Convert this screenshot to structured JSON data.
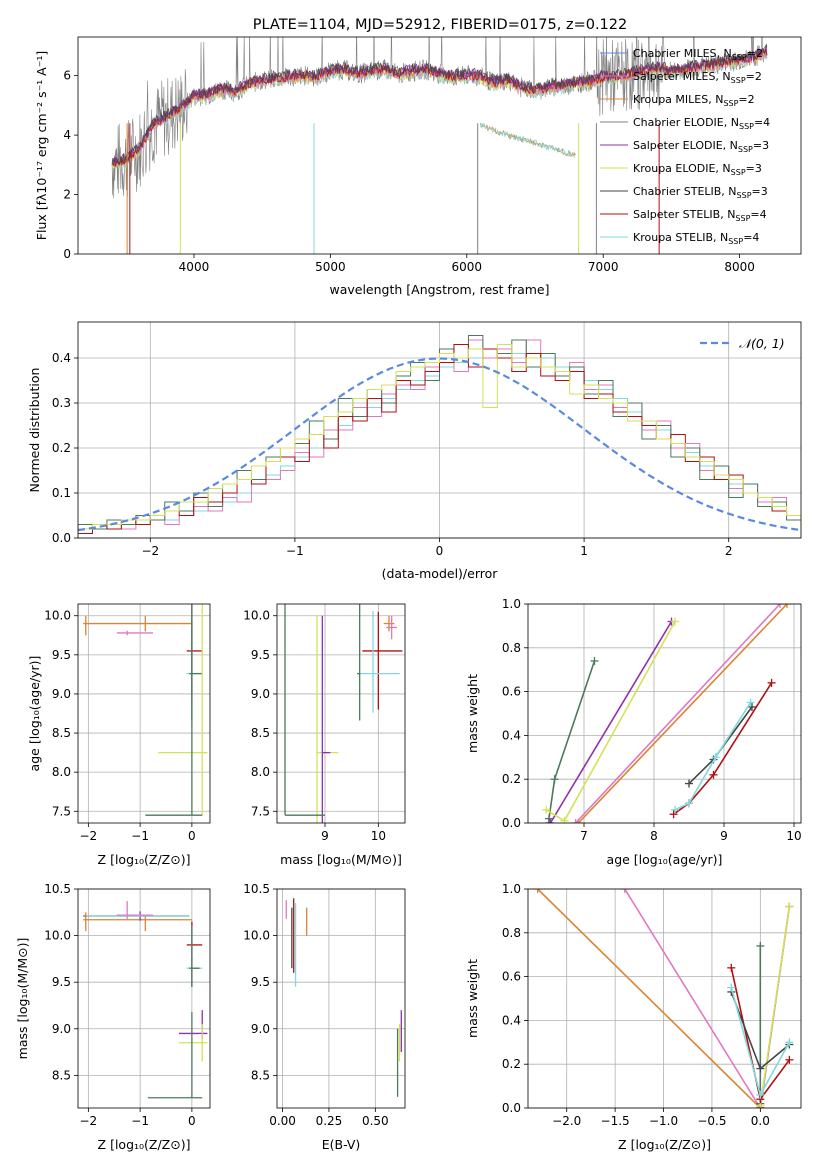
{
  "colors": {
    "gray": "#808080",
    "pink": "#e377c2",
    "orange": "#d98532",
    "olive": "#4c7a5c",
    "purple": "#9030a8",
    "yellow": "#d4e157",
    "dark": "#454545",
    "red": "#b01010",
    "cyan": "#80d8e0",
    "gauss": "#5a8ae0"
  },
  "chart_data": [
    {
      "type": "line",
      "title": "PLATE=1104, MJD=52912, FIBERID=0175, z=0.122",
      "xlabel": "wavelength [Angstrom, rest frame]",
      "ylabel": "Flux [fλ10⁻¹⁷ erg cm⁻² s⁻¹ A⁻¹]",
      "xlim": [
        3150,
        8450
      ],
      "ylim": [
        0,
        7.3
      ],
      "xticks": [
        4000,
        5000,
        6000,
        7000,
        8000
      ],
      "yticks": [
        0,
        2,
        4,
        6
      ],
      "legend": [
        {
          "text": "Chabrier MILES, N",
          "sub": "SSP",
          "tail": "=2",
          "color": "#5a8ae0"
        },
        {
          "text": "Salpeter MILES, N",
          "sub": "SSP",
          "tail": "=2",
          "color": "#e377c2"
        },
        {
          "text": "Kroupa MILES, N",
          "sub": "SSP",
          "tail": "=2",
          "color": "#d98532"
        },
        {
          "text": "Chabrier ELODIE, N",
          "sub": "SSP",
          "tail": "=4",
          "color": "#808080"
        },
        {
          "text": "Salpeter ELODIE, N",
          "sub": "SSP",
          "tail": "=3",
          "color": "#9030a8"
        },
        {
          "text": "Kroupa ELODIE, N",
          "sub": "SSP",
          "tail": "=3",
          "color": "#d4e157"
        },
        {
          "text": "Chabrier STELIB, N",
          "sub": "SSP",
          "tail": "=3",
          "color": "#454545"
        },
        {
          "text": "Salpeter STELIB, N",
          "sub": "SSP",
          "tail": "=4",
          "color": "#b01010"
        },
        {
          "text": "Kroupa STELIB, N",
          "sub": "SSP",
          "tail": "=4",
          "color": "#80d8e0"
        }
      ],
      "spectrum": {
        "x": [
          3400,
          3500,
          3600,
          3700,
          3800,
          3900,
          4000,
          4100,
          4200,
          4300,
          4400,
          4500,
          4600,
          4700,
          4800,
          4900,
          5000,
          5100,
          5200,
          5300,
          5400,
          5500,
          5600,
          5700,
          5800,
          5900,
          6000,
          6050,
          6100,
          6200,
          6300,
          6400,
          6500,
          6600,
          6700,
          6800,
          6900,
          7000,
          7100,
          7200,
          7300,
          7400,
          7500,
          7600,
          7700,
          7800,
          7900,
          8000,
          8100,
          8200
        ],
        "y": [
          3.05,
          3.15,
          3.55,
          4.35,
          4.6,
          4.9,
          5.3,
          5.35,
          5.55,
          5.45,
          5.7,
          5.85,
          5.9,
          5.95,
          6.0,
          5.95,
          6.15,
          6.2,
          6.05,
          6.15,
          6.2,
          6.05,
          6.15,
          6.2,
          6.05,
          5.95,
          6.0,
          6.0,
          5.95,
          5.75,
          5.85,
          5.6,
          5.5,
          5.6,
          5.65,
          5.75,
          5.8,
          5.95,
          5.95,
          6.05,
          6.15,
          6.25,
          6.15,
          6.2,
          6.3,
          6.35,
          6.45,
          6.5,
          6.6,
          6.8
        ]
      },
      "second_branch": {
        "x": [
          6100,
          6200,
          6300,
          6400,
          6500,
          6600,
          6700,
          6800
        ],
        "y": [
          4.35,
          4.15,
          4.0,
          3.85,
          3.75,
          3.6,
          3.45,
          3.3
        ]
      }
    },
    {
      "type": "bar",
      "xlabel": "(data-model)/error",
      "ylabel": "Normed distribution",
      "xlim": [
        -2.5,
        2.5
      ],
      "ylim": [
        0,
        0.48
      ],
      "xticks": [
        -2,
        -1,
        0,
        1,
        2
      ],
      "yticks": [
        0.0,
        0.1,
        0.2,
        0.3,
        0.4
      ],
      "legend": "𝒩(0, 1)",
      "bin_width": 0.1,
      "series": [
        {
          "color": "#80d8e0",
          "values": [
            0.01,
            0.02,
            0.02,
            0.03,
            0.03,
            0.04,
            0.04,
            0.05,
            0.06,
            0.07,
            0.08,
            0.1,
            0.12,
            0.14,
            0.16,
            0.18,
            0.2,
            0.22,
            0.25,
            0.27,
            0.29,
            0.31,
            0.33,
            0.35,
            0.36,
            0.38,
            0.39,
            0.4,
            0.4,
            0.41,
            0.41,
            0.4,
            0.4,
            0.38,
            0.37,
            0.35,
            0.33,
            0.31,
            0.28,
            0.26,
            0.24,
            0.21,
            0.19,
            0.16,
            0.14,
            0.12,
            0.1,
            0.08,
            0.06,
            0.04
          ]
        },
        {
          "color": "#e377c2",
          "values": [
            0.02,
            0.02,
            0.03,
            0.02,
            0.04,
            0.05,
            0.03,
            0.05,
            0.07,
            0.06,
            0.09,
            0.08,
            0.12,
            0.13,
            0.15,
            0.19,
            0.18,
            0.24,
            0.24,
            0.29,
            0.27,
            0.32,
            0.34,
            0.33,
            0.38,
            0.42,
            0.37,
            0.44,
            0.4,
            0.42,
            0.39,
            0.44,
            0.38,
            0.36,
            0.39,
            0.33,
            0.34,
            0.29,
            0.3,
            0.24,
            0.26,
            0.2,
            0.21,
            0.15,
            0.16,
            0.11,
            0.12,
            0.08,
            0.09,
            0.05
          ]
        },
        {
          "color": "#4c7a5c",
          "values": [
            0.03,
            0.02,
            0.04,
            0.03,
            0.05,
            0.04,
            0.08,
            0.06,
            0.1,
            0.07,
            0.12,
            0.15,
            0.13,
            0.18,
            0.2,
            0.21,
            0.26,
            0.22,
            0.31,
            0.27,
            0.33,
            0.3,
            0.36,
            0.39,
            0.35,
            0.42,
            0.4,
            0.45,
            0.42,
            0.41,
            0.44,
            0.38,
            0.41,
            0.36,
            0.38,
            0.32,
            0.35,
            0.27,
            0.3,
            0.22,
            0.25,
            0.18,
            0.2,
            0.13,
            0.16,
            0.09,
            0.12,
            0.07,
            0.08,
            0.04
          ]
        },
        {
          "color": "#b01010",
          "values": [
            0.01,
            0.03,
            0.02,
            0.04,
            0.03,
            0.05,
            0.06,
            0.05,
            0.09,
            0.08,
            0.1,
            0.13,
            0.12,
            0.17,
            0.18,
            0.17,
            0.23,
            0.2,
            0.27,
            0.26,
            0.31,
            0.28,
            0.35,
            0.34,
            0.37,
            0.39,
            0.43,
            0.38,
            0.42,
            0.4,
            0.37,
            0.41,
            0.36,
            0.35,
            0.37,
            0.31,
            0.32,
            0.28,
            0.27,
            0.25,
            0.22,
            0.23,
            0.17,
            0.18,
            0.13,
            0.14,
            0.1,
            0.09,
            0.06,
            0.05
          ]
        },
        {
          "color": "#d4e157",
          "values": [
            0.02,
            0.03,
            0.03,
            0.04,
            0.04,
            0.05,
            0.06,
            0.08,
            0.08,
            0.11,
            0.12,
            0.13,
            0.16,
            0.17,
            0.2,
            0.22,
            0.23,
            0.27,
            0.28,
            0.31,
            0.33,
            0.34,
            0.37,
            0.38,
            0.39,
            0.41,
            0.4,
            0.42,
            0.29,
            0.43,
            0.38,
            0.4,
            0.38,
            0.37,
            0.32,
            0.34,
            0.31,
            0.3,
            0.26,
            0.26,
            0.22,
            0.21,
            0.18,
            0.17,
            0.14,
            0.13,
            0.1,
            0.09,
            0.07,
            0.05
          ]
        }
      ],
      "gaussian": "N(0,1)"
    },
    {
      "type": "scatter",
      "xlabel": "Z [log₁₀(Z/Z⊙)]",
      "ylabel": "age  [log₁₀(age/yr)]",
      "xlim": [
        -2.2,
        0.35
      ],
      "ylim": [
        7.35,
        10.15
      ],
      "xticks": [
        -2,
        -1,
        0
      ],
      "yticks": [
        7.5,
        8.0,
        8.5,
        9.0,
        9.5,
        10.0
      ]
    },
    {
      "type": "scatter",
      "xlabel": "mass [log₁₀(M/M⊙)]",
      "xlim": [
        8.1,
        10.5
      ],
      "ylim": [
        7.35,
        10.15
      ],
      "xticks": [
        9,
        10
      ],
      "yticks": [
        7.5,
        8.0,
        8.5,
        9.0,
        9.5,
        10.0
      ]
    },
    {
      "type": "line",
      "xlabel": "age  [log₁₀(age/yr)]",
      "ylabel": "mass weight",
      "xlim": [
        6.2,
        10.1
      ],
      "ylim": [
        0,
        1
      ],
      "xticks": [
        7,
        8,
        9,
        10
      ],
      "yticks": [
        0.0,
        0.2,
        0.4,
        0.6,
        0.8,
        1.0
      ],
      "series": [
        {
          "color": "#4c7a5c",
          "x": [
            6.5,
            6.5,
            6.58,
            7.15
          ],
          "y": [
            0.0,
            0.02,
            0.2,
            0.74
          ]
        },
        {
          "color": "#9030a8",
          "x": [
            6.52,
            8.25
          ],
          "y": [
            0.0,
            0.92
          ]
        },
        {
          "color": "#d4e157",
          "x": [
            6.46,
            6.72,
            8.3
          ],
          "y": [
            0.06,
            0.01,
            0.92
          ]
        },
        {
          "color": "#d98532",
          "x": [
            6.92,
            9.9
          ],
          "y": [
            0.0,
            1.0
          ]
        },
        {
          "color": "#e377c2",
          "x": [
            6.88,
            9.8
          ],
          "y": [
            0.0,
            1.0
          ]
        },
        {
          "color": "#454545",
          "x": [
            8.5,
            8.85,
            9.4
          ],
          "y": [
            0.18,
            0.29,
            0.53
          ]
        },
        {
          "color": "#b01010",
          "x": [
            8.28,
            8.5,
            8.85,
            9.68
          ],
          "y": [
            0.04,
            0.09,
            0.22,
            0.64
          ]
        },
        {
          "color": "#80d8e0",
          "x": [
            8.3,
            8.5,
            8.88,
            9.38
          ],
          "y": [
            0.06,
            0.09,
            0.3,
            0.55
          ]
        }
      ]
    },
    {
      "type": "scatter",
      "xlabel": "Z [log₁₀(Z/Z⊙)]",
      "ylabel": "mass [log₁₀(M/M⊙)]",
      "xlim": [
        -2.2,
        0.35
      ],
      "ylim": [
        8.15,
        10.5
      ],
      "xticks": [
        -2,
        -1,
        0
      ],
      "yticks": [
        8.5,
        9.0,
        9.5,
        10.0,
        10.5
      ]
    },
    {
      "type": "scatter",
      "xlabel": "E(B-V)",
      "xlim": [
        -0.03,
        0.66
      ],
      "ylim": [
        8.15,
        10.5
      ],
      "xticks": [
        0.0,
        0.25,
        0.5
      ],
      "yticks": [
        8.5,
        9.0,
        9.5,
        10.0,
        10.5
      ]
    },
    {
      "type": "line",
      "xlabel": "Z [log₁₀(Z/Z⊙)]",
      "ylabel": "mass weight",
      "xlim": [
        -2.4,
        0.42
      ],
      "ylim": [
        0,
        1
      ],
      "xticks": [
        -2.0,
        -1.5,
        -1.0,
        -0.5,
        0.0
      ],
      "yticks": [
        0.0,
        0.2,
        0.4,
        0.6,
        0.8,
        1.0
      ],
      "series": [
        {
          "color": "#e377c2",
          "x": [
            -1.4,
            0.0
          ],
          "y": [
            1.0,
            0.0
          ]
        },
        {
          "color": "#d98532",
          "x": [
            -2.3,
            0.0
          ],
          "y": [
            1.0,
            0.0
          ]
        },
        {
          "color": "#4c7a5c",
          "x": [
            0.0,
            0.0,
            0.0
          ],
          "y": [
            0.0,
            0.74,
            0.02
          ]
        },
        {
          "color": "#9030a8",
          "x": [
            0.0,
            0.3
          ],
          "y": [
            0.0,
            0.92
          ]
        },
        {
          "color": "#d4e157",
          "x": [
            0.0,
            0.3
          ],
          "y": [
            0.01,
            0.92
          ]
        },
        {
          "color": "#b01010",
          "x": [
            -0.3,
            0.0,
            0.3
          ],
          "y": [
            0.64,
            0.04,
            0.22
          ]
        },
        {
          "color": "#454545",
          "x": [
            -0.3,
            0.0,
            0.3
          ],
          "y": [
            0.53,
            0.18,
            0.29
          ]
        },
        {
          "color": "#80d8e0",
          "x": [
            -0.3,
            0.0,
            0.3
          ],
          "y": [
            0.55,
            0.06,
            0.3
          ]
        }
      ]
    }
  ]
}
